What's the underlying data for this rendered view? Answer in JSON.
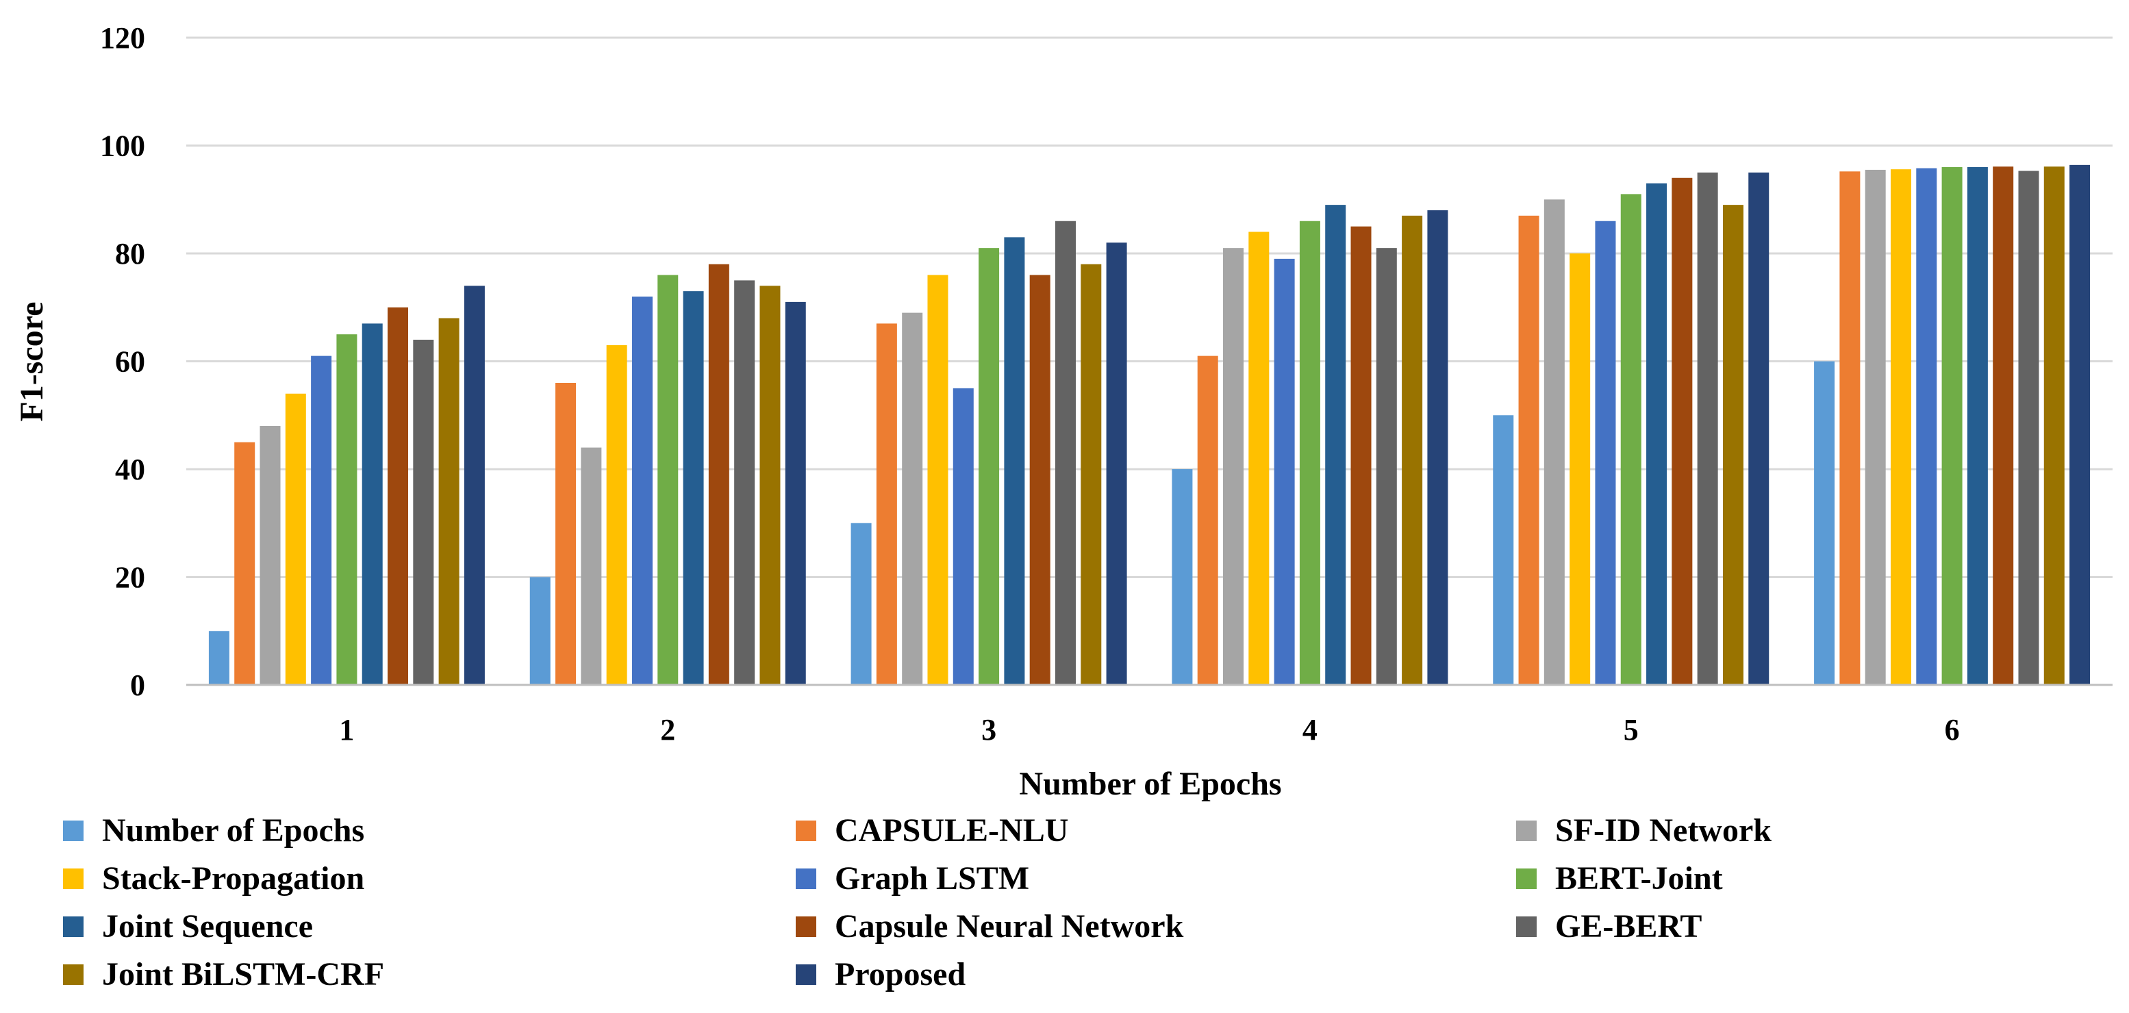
{
  "chart_data": {
    "type": "bar",
    "title": "",
    "xlabel": "Number of Epochs",
    "ylabel": "F1-score",
    "ylim": [
      0,
      120
    ],
    "yticks": [
      0,
      20,
      40,
      60,
      80,
      100,
      120
    ],
    "grid": true,
    "legend_position": "bottom",
    "categories": [
      "1",
      "2",
      "3",
      "4",
      "5",
      "6"
    ],
    "series": [
      {
        "name": "Number of Epochs",
        "color": "#5B9BD5",
        "values": [
          10,
          20,
          30,
          40,
          50,
          60
        ]
      },
      {
        "name": "CAPSULE-NLU",
        "color": "#ED7D31",
        "values": [
          45,
          56,
          67,
          61,
          87,
          95.2
        ]
      },
      {
        "name": "SF-ID Network",
        "color": "#A5A5A5",
        "values": [
          48,
          44,
          69,
          81,
          90,
          95.5
        ]
      },
      {
        "name": "Stack-Propagation",
        "color": "#FFC000",
        "values": [
          54,
          63,
          76,
          84,
          80,
          95.6
        ]
      },
      {
        "name": "Graph LSTM",
        "color": "#4472C4",
        "values": [
          61,
          72,
          55,
          79,
          86,
          95.8
        ]
      },
      {
        "name": "BERT-Joint",
        "color": "#70AD47",
        "values": [
          65,
          76,
          81,
          86,
          91,
          96
        ]
      },
      {
        "name": "Joint Sequence",
        "color": "#255E91",
        "values": [
          67,
          73,
          83,
          89,
          93,
          96
        ]
      },
      {
        "name": "Capsule Neural Network",
        "color": "#9E480E",
        "values": [
          70,
          78,
          76,
          85,
          94,
          96.1
        ]
      },
      {
        "name": "GE-BERT",
        "color": "#636363",
        "values": [
          64,
          75,
          86,
          81,
          95,
          95.3
        ]
      },
      {
        "name": "Joint BiLSTM-CRF",
        "color": "#997300",
        "values": [
          68,
          74,
          78,
          87,
          89,
          96.1
        ]
      },
      {
        "name": "Proposed",
        "color": "#264478",
        "values": [
          74,
          71,
          82,
          88,
          95,
          96.4
        ]
      }
    ]
  }
}
